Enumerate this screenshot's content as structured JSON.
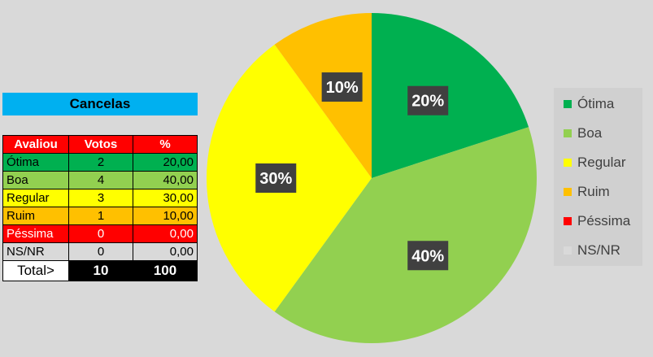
{
  "table": {
    "title": "Cancelas",
    "headers": [
      "Avaliou",
      "Votos",
      "%"
    ],
    "rows": [
      {
        "label": "Ótima",
        "votos": "2",
        "pct": "20,00",
        "bg": "#00b050",
        "color": "#000000"
      },
      {
        "label": "Boa",
        "votos": "4",
        "pct": "40,00",
        "bg": "#92d050",
        "color": "#000000"
      },
      {
        "label": "Regular",
        "votos": "3",
        "pct": "30,00",
        "bg": "#ffff00",
        "color": "#000000"
      },
      {
        "label": "Ruim",
        "votos": "1",
        "pct": "10,00",
        "bg": "#ffc000",
        "color": "#000000"
      },
      {
        "label": "Péssima",
        "votos": "0",
        "pct": "0,00",
        "bg": "#ff0000",
        "color": "#ffffff"
      },
      {
        "label": "NS/NR",
        "votos": "0",
        "pct": "0,00",
        "bg": "#d9d9d9",
        "color": "#000000"
      }
    ],
    "total_label": "Total>",
    "total_votos": "10",
    "total_pct": "100"
  },
  "chart_data": {
    "type": "pie",
    "categories": [
      "Ótima",
      "Boa",
      "Regular",
      "Ruim",
      "Péssima",
      "NS/NR"
    ],
    "values": [
      20,
      40,
      30,
      10,
      0,
      0
    ],
    "data_labels": [
      "20%",
      "40%",
      "30%",
      "10%",
      "",
      ""
    ],
    "colors": [
      "#00b050",
      "#92d050",
      "#ffff00",
      "#ffc000",
      "#ff0000",
      "#d9d9d9"
    ],
    "legend_position": "right"
  }
}
